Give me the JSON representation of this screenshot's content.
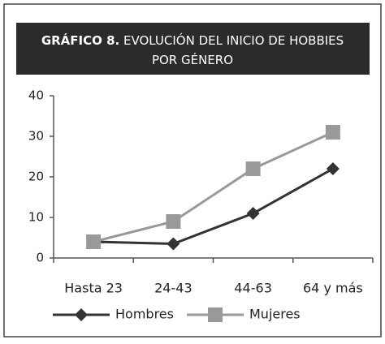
{
  "chart_data": {
    "type": "line",
    "title_label": "GRÁFICO 8.",
    "title": "EVOLUCIÓN DEL INICIO DE HOBBIES POR GÉNERO",
    "categories": [
      "Hasta 23",
      "24-43",
      "44-63",
      "64 y más"
    ],
    "series": [
      {
        "name": "Hombres",
        "color": "#333333",
        "marker": "diamond",
        "values": [
          4,
          3.5,
          11,
          22
        ]
      },
      {
        "name": "Mujeres",
        "color": "#999999",
        "marker": "square",
        "values": [
          4,
          9,
          22,
          31
        ]
      }
    ],
    "ylim": [
      0,
      40
    ],
    "yticks": [
      0,
      10,
      20,
      30,
      40
    ],
    "grid": false,
    "legend": "bottom"
  }
}
